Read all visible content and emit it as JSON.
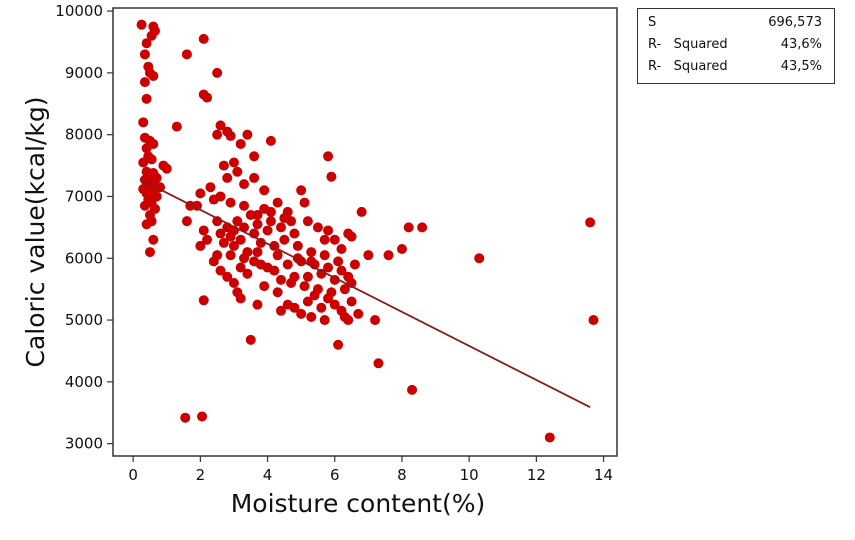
{
  "chart_data": {
    "type": "scatter",
    "title": "",
    "xlabel": "Moisture content(%)",
    "ylabel": "Caloric value(kcal/kg)",
    "xlim": [
      -0.6,
      14.4
    ],
    "ylim": [
      2800,
      10050
    ],
    "xticks": [
      0,
      2,
      4,
      6,
      8,
      10,
      12,
      14
    ],
    "yticks": [
      3000,
      4000,
      5000,
      6000,
      7000,
      8000,
      9000,
      10000
    ],
    "grid": false,
    "colors": {
      "points": "#cc0000",
      "fit_line": "#8b1a1a"
    },
    "fit_line": {
      "x": [
        0.2,
        13.6
      ],
      "y": [
        7280,
        3590
      ]
    },
    "points": [
      [
        0.25,
        9780
      ],
      [
        0.6,
        9750
      ],
      [
        0.65,
        9680
      ],
      [
        0.55,
        9600
      ],
      [
        0.4,
        9480
      ],
      [
        0.35,
        9300
      ],
      [
        0.45,
        9100
      ],
      [
        0.5,
        9000
      ],
      [
        0.6,
        8950
      ],
      [
        0.35,
        8850
      ],
      [
        0.4,
        8580
      ],
      [
        0.3,
        8200
      ],
      [
        0.35,
        7950
      ],
      [
        0.5,
        7900
      ],
      [
        0.6,
        7850
      ],
      [
        0.4,
        7780
      ],
      [
        0.45,
        7650
      ],
      [
        0.55,
        7600
      ],
      [
        0.3,
        7550
      ],
      [
        0.9,
        7500
      ],
      [
        1.0,
        7450
      ],
      [
        0.4,
        7400
      ],
      [
        0.6,
        7380
      ],
      [
        0.5,
        7350
      ],
      [
        0.7,
        7300
      ],
      [
        0.35,
        7270
      ],
      [
        0.55,
        7250
      ],
      [
        0.45,
        7200
      ],
      [
        0.65,
        7180
      ],
      [
        0.8,
        7150
      ],
      [
        0.3,
        7120
      ],
      [
        0.6,
        7100
      ],
      [
        0.4,
        7050
      ],
      [
        0.5,
        7020
      ],
      [
        0.7,
        7000
      ],
      [
        0.45,
        6950
      ],
      [
        0.55,
        6900
      ],
      [
        0.35,
        6850
      ],
      [
        0.65,
        6800
      ],
      [
        0.5,
        6700
      ],
      [
        0.55,
        6600
      ],
      [
        0.4,
        6550
      ],
      [
        0.6,
        6300
      ],
      [
        0.5,
        6100
      ],
      [
        1.3,
        8130
      ],
      [
        1.6,
        9300
      ],
      [
        2.1,
        9550
      ],
      [
        2.1,
        8650
      ],
      [
        2.5,
        9000
      ],
      [
        2.2,
        8600
      ],
      [
        2.6,
        8150
      ],
      [
        2.5,
        8000
      ],
      [
        2.8,
        8050
      ],
      [
        2.9,
        7980
      ],
      [
        3.2,
        7850
      ],
      [
        2.7,
        7500
      ],
      [
        3.0,
        7550
      ],
      [
        3.1,
        7400
      ],
      [
        2.8,
        7300
      ],
      [
        3.3,
        7200
      ],
      [
        3.6,
        7300
      ],
      [
        3.6,
        7650
      ],
      [
        4.1,
        7900
      ],
      [
        3.9,
        7100
      ],
      [
        2.3,
        7150
      ],
      [
        2.0,
        7050
      ],
      [
        1.9,
        6850
      ],
      [
        2.4,
        6950
      ],
      [
        2.6,
        7000
      ],
      [
        1.7,
        6850
      ],
      [
        1.6,
        6600
      ],
      [
        2.1,
        6450
      ],
      [
        2.2,
        6300
      ],
      [
        2.0,
        6200
      ],
      [
        2.5,
        6600
      ],
      [
        2.6,
        6400
      ],
      [
        2.7,
        6250
      ],
      [
        2.8,
        6500
      ],
      [
        2.9,
        6350
      ],
      [
        3.0,
        6450
      ],
      [
        3.0,
        6200
      ],
      [
        3.1,
        6600
      ],
      [
        3.2,
        6300
      ],
      [
        3.3,
        6500
      ],
      [
        3.4,
        6100
      ],
      [
        3.5,
        6700
      ],
      [
        3.6,
        6400
      ],
      [
        3.7,
        6550
      ],
      [
        3.8,
        6250
      ],
      [
        3.9,
        6800
      ],
      [
        4.0,
        6450
      ],
      [
        4.1,
        6600
      ],
      [
        4.2,
        6200
      ],
      [
        4.3,
        6900
      ],
      [
        4.4,
        6500
      ],
      [
        4.5,
        6300
      ],
      [
        4.6,
        6750
      ],
      [
        4.7,
        6600
      ],
      [
        4.8,
        6400
      ],
      [
        4.9,
        6200
      ],
      [
        5.0,
        7100
      ],
      [
        5.1,
        6900
      ],
      [
        5.2,
        6600
      ],
      [
        5.3,
        6100
      ],
      [
        5.5,
        6500
      ],
      [
        5.7,
        6300
      ],
      [
        5.8,
        6450
      ],
      [
        6.0,
        6300
      ],
      [
        6.2,
        6150
      ],
      [
        6.4,
        6400
      ],
      [
        6.5,
        6350
      ],
      [
        6.8,
        6750
      ],
      [
        7.0,
        6050
      ],
      [
        7.6,
        6050
      ],
      [
        8.0,
        6150
      ],
      [
        8.2,
        6500
      ],
      [
        8.6,
        6500
      ],
      [
        2.4,
        5950
      ],
      [
        2.6,
        5800
      ],
      [
        2.8,
        5700
      ],
      [
        3.0,
        5600
      ],
      [
        3.2,
        5850
      ],
      [
        3.4,
        5750
      ],
      [
        3.6,
        5950
      ],
      [
        3.8,
        5900
      ],
      [
        4.0,
        5850
      ],
      [
        4.2,
        5800
      ],
      [
        4.4,
        5650
      ],
      [
        4.6,
        5900
      ],
      [
        4.8,
        5700
      ],
      [
        5.0,
        5950
      ],
      [
        5.2,
        5700
      ],
      [
        5.4,
        5900
      ],
      [
        5.6,
        5750
      ],
      [
        5.8,
        5850
      ],
      [
        6.0,
        5650
      ],
      [
        6.2,
        5800
      ],
      [
        6.4,
        5700
      ],
      [
        3.1,
        5450
      ],
      [
        3.2,
        5350
      ],
      [
        3.7,
        5250
      ],
      [
        4.4,
        5150
      ],
      [
        4.6,
        5250
      ],
      [
        4.8,
        5200
      ],
      [
        5.0,
        5100
      ],
      [
        5.2,
        5300
      ],
      [
        5.4,
        5400
      ],
      [
        5.6,
        5200
      ],
      [
        5.8,
        5350
      ],
      [
        6.0,
        5250
      ],
      [
        6.2,
        5150
      ],
      [
        6.3,
        5050
      ],
      [
        6.5,
        5300
      ],
      [
        6.7,
        5100
      ],
      [
        4.7,
        5600
      ],
      [
        5.1,
        5550
      ],
      [
        5.5,
        5500
      ],
      [
        5.9,
        5450
      ],
      [
        6.3,
        5500
      ],
      [
        6.5,
        5600
      ],
      [
        2.1,
        5320
      ],
      [
        3.5,
        4680
      ],
      [
        6.1,
        4600
      ],
      [
        7.2,
        5000
      ],
      [
        7.3,
        4300
      ],
      [
        8.3,
        3870
      ],
      [
        10.3,
        6000
      ],
      [
        12.4,
        3100
      ],
      [
        13.6,
        6580
      ],
      [
        13.7,
        5000
      ],
      [
        1.55,
        3420
      ],
      [
        2.05,
        3440
      ],
      [
        5.8,
        7650
      ],
      [
        5.9,
        7320
      ],
      [
        3.4,
        8000
      ],
      [
        2.9,
        6900
      ],
      [
        3.3,
        6850
      ],
      [
        3.7,
        6700
      ],
      [
        4.1,
        6750
      ],
      [
        4.5,
        6650
      ],
      [
        2.5,
        6050
      ],
      [
        2.9,
        6050
      ],
      [
        3.3,
        6000
      ],
      [
        3.7,
        6100
      ],
      [
        4.3,
        6050
      ],
      [
        4.9,
        6000
      ],
      [
        5.3,
        5950
      ],
      [
        5.7,
        6050
      ],
      [
        6.1,
        5950
      ],
      [
        6.6,
        5900
      ],
      [
        3.9,
        5550
      ],
      [
        4.3,
        5450
      ],
      [
        5.3,
        5050
      ],
      [
        5.7,
        5000
      ],
      [
        6.4,
        5000
      ]
    ]
  },
  "stats": {
    "rows": [
      {
        "label": "S",
        "value": "696,573"
      },
      {
        "label": "R-   Squared",
        "value": "43,6%"
      },
      {
        "label": "R-   Squared",
        "value": "43,5%"
      }
    ]
  }
}
